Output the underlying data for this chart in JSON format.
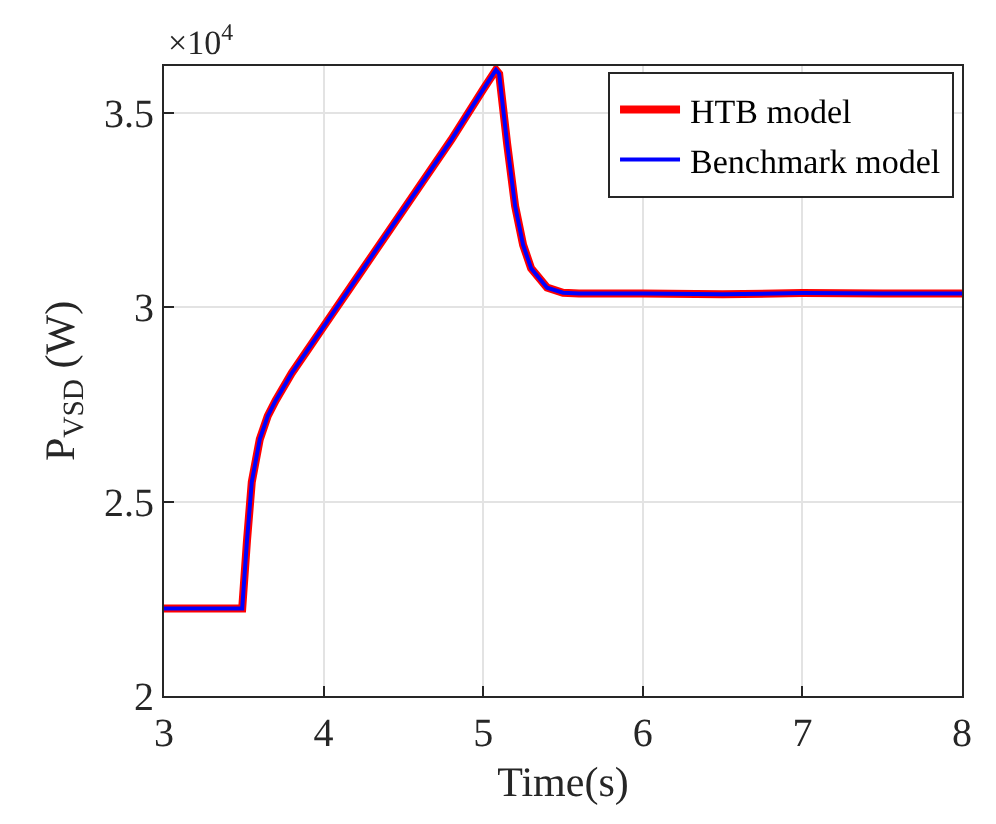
{
  "chart_data": {
    "type": "line",
    "xlabel": "Time(s)",
    "ylabel": "P$_{VSD}$ (W)",
    "annotations": [
      "×10$^{4}$"
    ],
    "x": [
      3,
      3.2,
      3.4,
      3.49,
      3.52,
      3.55,
      3.6,
      3.65,
      3.7,
      3.8,
      3.9,
      4.0,
      4.2,
      4.4,
      4.6,
      4.8,
      5.0,
      5.08,
      5.1,
      5.15,
      5.2,
      5.25,
      5.3,
      5.4,
      5.5,
      5.6,
      6,
      6.5,
      7,
      7.5,
      8
    ],
    "series": [
      {
        "name": "HTB model",
        "color": "#ff0000",
        "values": [
          2.225,
          2.225,
          2.225,
          2.225,
          2.4,
          2.55,
          2.66,
          2.72,
          2.76,
          2.83,
          2.89,
          2.95,
          3.07,
          3.19,
          3.31,
          3.43,
          3.56,
          3.61,
          3.6,
          3.42,
          3.26,
          3.16,
          3.1,
          3.05,
          3.037,
          3.035,
          3.035,
          3.033,
          3.036,
          3.035,
          3.035
        ]
      },
      {
        "name": "Benchmark model",
        "color": "#0000ff",
        "values": [
          2.225,
          2.225,
          2.225,
          2.225,
          2.4,
          2.55,
          2.66,
          2.72,
          2.76,
          2.83,
          2.89,
          2.95,
          3.07,
          3.19,
          3.31,
          3.43,
          3.56,
          3.61,
          3.6,
          3.42,
          3.26,
          3.16,
          3.1,
          3.05,
          3.037,
          3.035,
          3.035,
          3.033,
          3.036,
          3.035,
          3.035
        ]
      }
    ],
    "xlim": [
      3,
      8
    ],
    "xticks": [
      3,
      4,
      5,
      6,
      7,
      8
    ],
    "ylim": [
      2,
      3.62
    ],
    "yticks": [
      2,
      2.5,
      3,
      3.5
    ],
    "grid": true,
    "legend": "top right",
    "line_style": "solid",
    "marker": "none"
  }
}
